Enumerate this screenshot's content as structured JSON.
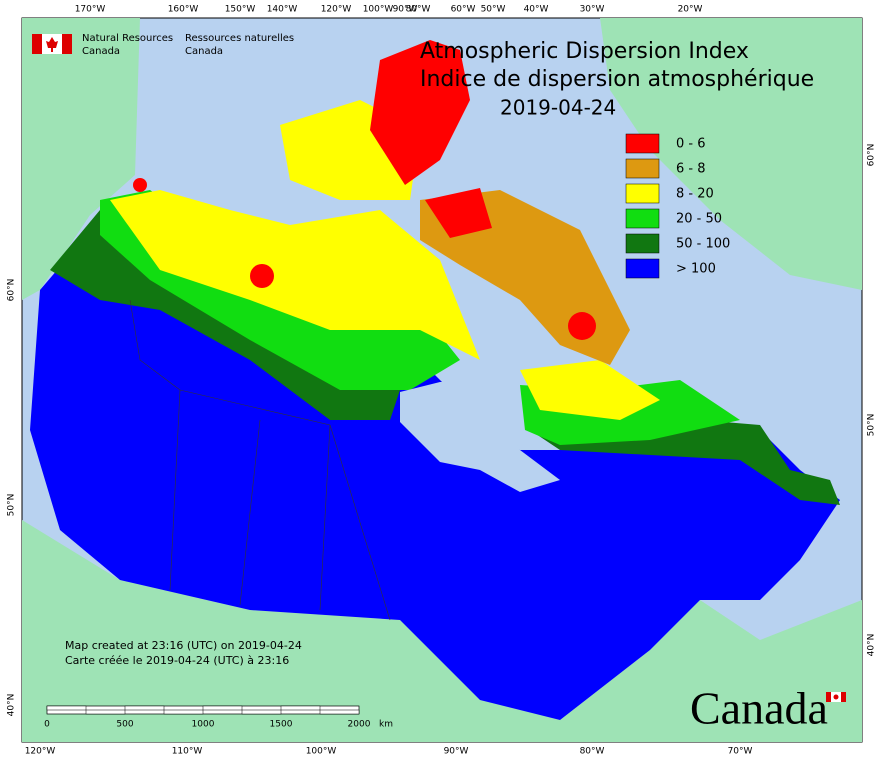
{
  "agency": {
    "en_line1": "Natural Resources",
    "en_line2": "Canada",
    "fr_line1": "Ressources naturelles",
    "fr_line2": "Canada"
  },
  "title": {
    "en": "Atmospheric Dispersion Index",
    "fr": "Indice de dispersion atmosphérique",
    "date": "2019-04-24"
  },
  "legend": [
    {
      "label": "0 - 6",
      "color": "#ff0000"
    },
    {
      "label": "6 - 8",
      "color": "#dd9911"
    },
    {
      "label": "8 - 20",
      "color": "#ffff00"
    },
    {
      "label": "20 - 50",
      "color": "#11dd11"
    },
    {
      "label": "50 - 100",
      "color": "#117711"
    },
    {
      "label": "> 100",
      "color": "#0000ff"
    }
  ],
  "graticule": {
    "top": [
      "170°W",
      "160°W",
      "150°W",
      "140°W",
      "120°W",
      "100°W",
      "90°W",
      "80°W",
      "60°W",
      "50°W",
      "40°W",
      "30°W",
      "20°W"
    ],
    "bottom": [
      "120°W",
      "110°W",
      "100°W",
      "90°W",
      "80°W",
      "70°W"
    ],
    "left": [
      "60°N",
      "50°N",
      "40°N"
    ],
    "right": [
      "60°N",
      "50°N",
      "40°N"
    ]
  },
  "footnote": [
    "Map created at 23:16 (UTC) on 2019-04-24",
    "Carte créée le 2019-04-24 (UTC) à 23:16"
  ],
  "scale_bar": {
    "labels": [
      "0",
      "500",
      "1000",
      "1500",
      "2000"
    ],
    "unit": "km"
  },
  "wordmark": "Canada"
}
